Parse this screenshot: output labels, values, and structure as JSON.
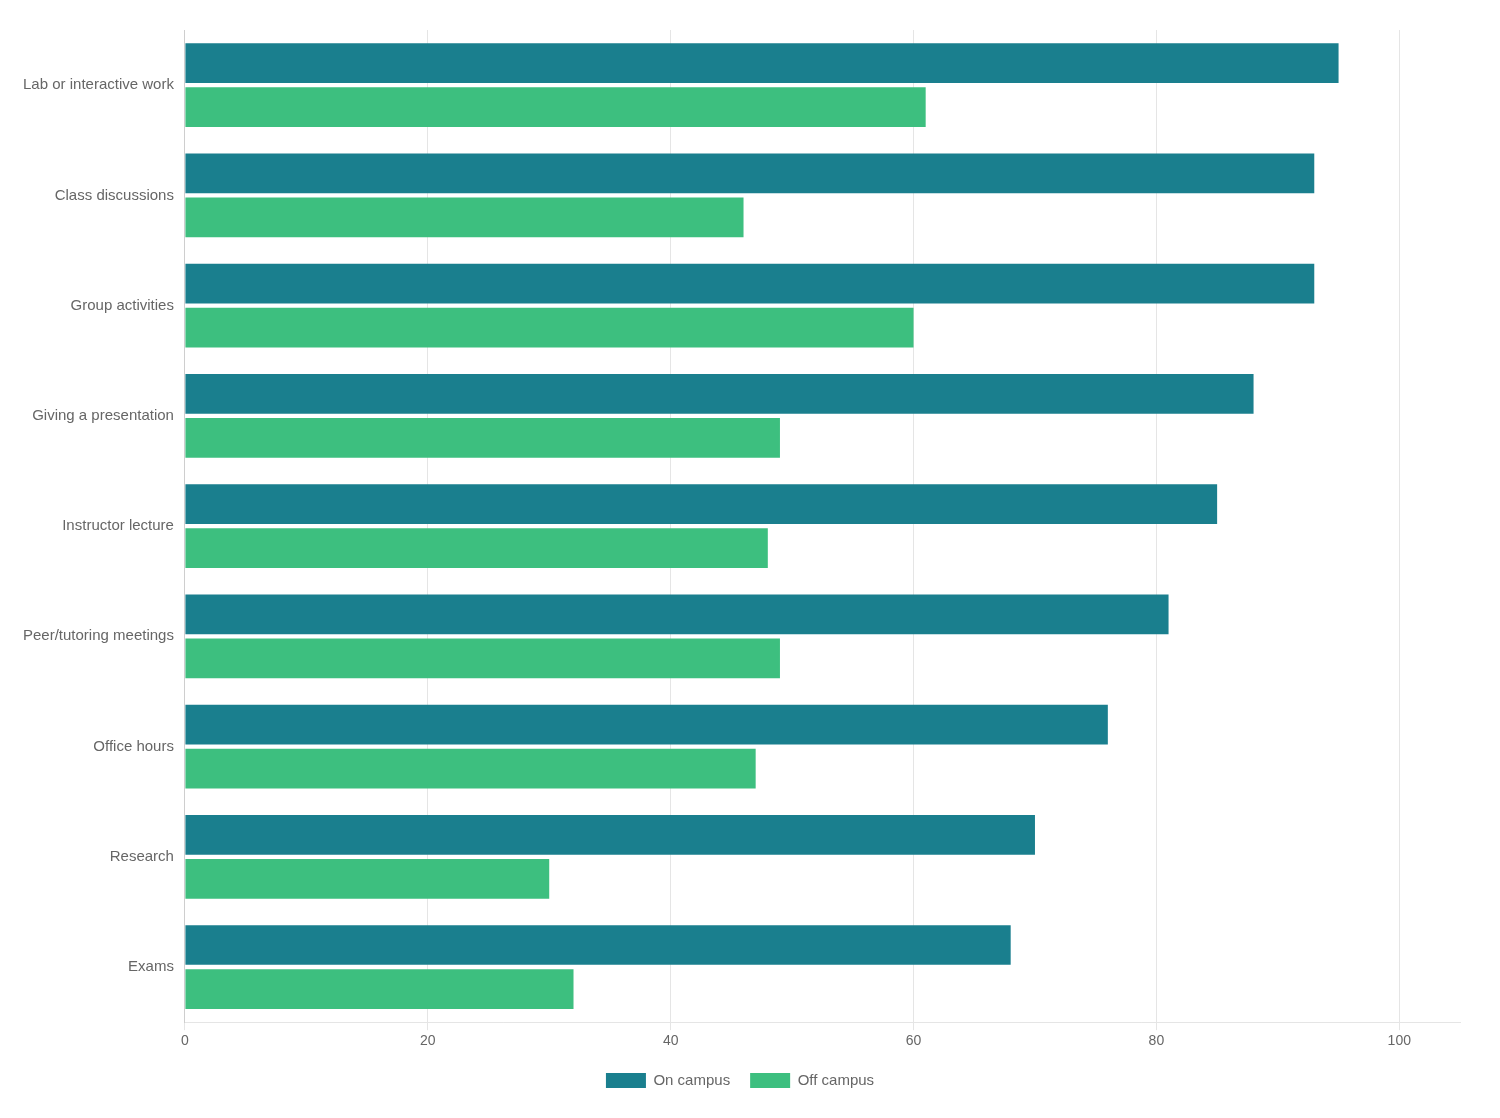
{
  "chart_data": {
    "type": "bar",
    "orientation": "horizontal",
    "categories": [
      "Lab or interactive work",
      "Class discussions",
      "Group activities",
      "Giving a presentation",
      "Instructor lecture",
      "Peer/tutoring meetings",
      "Office hours",
      "Research",
      "Exams"
    ],
    "series": [
      {
        "name": "On campus",
        "color": "#1a7f8e",
        "values": [
          95,
          93,
          93,
          88,
          85,
          81,
          76,
          70,
          68
        ]
      },
      {
        "name": "Off campus",
        "color": "#3dbf7f",
        "values": [
          61,
          46,
          60,
          49,
          48,
          49,
          47,
          30,
          32
        ]
      }
    ],
    "xlim": [
      0,
      105
    ],
    "xticks": [
      0,
      20,
      40,
      60,
      80,
      100
    ],
    "grid": true,
    "legend": "bottom"
  }
}
